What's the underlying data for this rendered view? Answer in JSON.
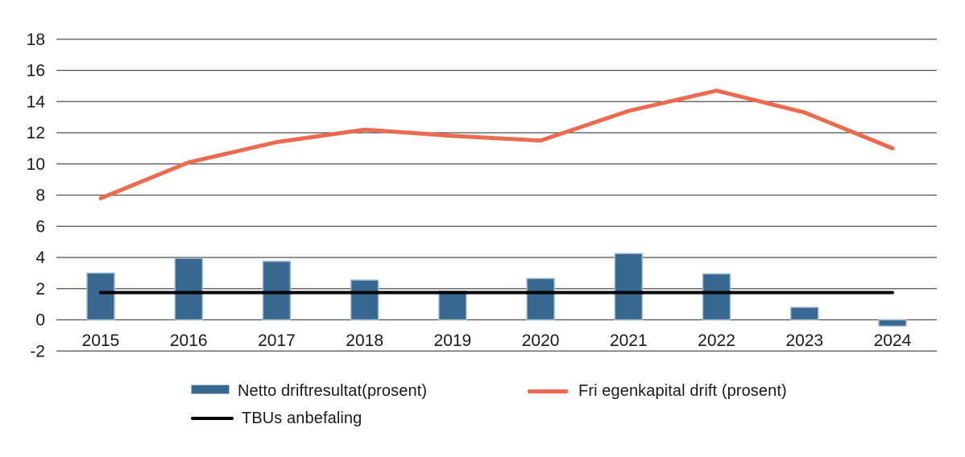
{
  "chart_data": {
    "type": "combo",
    "title": "",
    "xlabel": "",
    "ylabel": "",
    "categories": [
      "2015",
      "2016",
      "2017",
      "2018",
      "2019",
      "2020",
      "2021",
      "2022",
      "2023",
      "2024"
    ],
    "series": [
      {
        "name": "Netto driftresultat(prosent)",
        "type": "bar",
        "color": "#38678f",
        "border_color": "#a3bccd",
        "values": [
          3.0,
          3.95,
          3.75,
          2.55,
          1.85,
          2.65,
          4.25,
          2.95,
          0.8,
          -0.4
        ]
      },
      {
        "name": "Fri egenkapital drift (prosent)",
        "type": "line",
        "color": "#ec6a50",
        "values": [
          7.8,
          10.1,
          11.4,
          12.2,
          11.8,
          11.5,
          13.4,
          14.7,
          13.3,
          11.0
        ]
      },
      {
        "name": "TBUs anbefaling",
        "type": "line",
        "color": "#000000",
        "values": [
          1.75,
          1.75,
          1.75,
          1.75,
          1.75,
          1.75,
          1.75,
          1.75,
          1.75,
          1.75
        ]
      }
    ],
    "ylim": [
      -2,
      18
    ],
    "ytick_step": 2,
    "yticks": [
      "-2",
      "0",
      "2",
      "4",
      "6",
      "8",
      "10",
      "12",
      "14",
      "16",
      "18"
    ],
    "grid": true,
    "gridline_color": "#4f4f4f",
    "axis_text_color": "#1a1a1a",
    "legend_position": "bottom"
  }
}
